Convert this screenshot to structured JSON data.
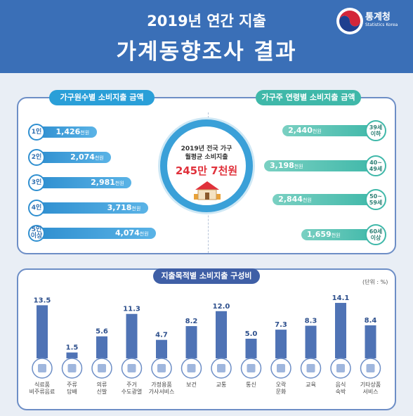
{
  "header": {
    "line1": "2019년 연간 지출",
    "line2": "가계동향조사 결과",
    "logo_name": "통계청",
    "logo_sub": "Statistics Korea"
  },
  "household": {
    "title": "가구원수별 소비지출 금액",
    "unit": "천원",
    "items": [
      {
        "label": "1인",
        "value": "1,426",
        "amount": 1426
      },
      {
        "label": "2인",
        "value": "2,074",
        "amount": 2074
      },
      {
        "label": "3인",
        "value": "2,981",
        "amount": 2981
      },
      {
        "label": "4인",
        "value": "3,718",
        "amount": 3718
      },
      {
        "label": "5인 이상",
        "value": "4,074",
        "amount": 4074
      }
    ]
  },
  "age": {
    "title": "가구주 연령별 소비지출 금액",
    "unit": "천원",
    "items": [
      {
        "label": "39세 이하",
        "value": "2,440",
        "amount": 2440
      },
      {
        "label": "40~ 49세",
        "value": "3,198",
        "amount": 3198
      },
      {
        "label": "50~ 59세",
        "value": "2,844",
        "amount": 2844
      },
      {
        "label": "60세 이상",
        "value": "1,659",
        "amount": 1659
      }
    ]
  },
  "center": {
    "line1": "2019년 전국 가구",
    "line2": "월평균 소비지출",
    "big": "245만 7천원"
  },
  "composition": {
    "title": "지출목적별 소비지출 구성비",
    "unit_note": "(단위 : %)"
  },
  "colors": {
    "header": "#3a6fb7",
    "household_bar": "#2f8fd0",
    "age_bar": "#3fb8a9",
    "comp_bar": "#4f73b5",
    "center_value": "#e0313b"
  },
  "chart_data": {
    "type": "bar",
    "title": "지출목적별 소비지출 구성비",
    "unit": "(단위 : %)",
    "categories": [
      "식료품 비주류음료",
      "주류 담배",
      "의류 신발",
      "주거 수도광열",
      "가정용품 가사서비스",
      "보건",
      "교통",
      "통신",
      "오락 문화",
      "교육",
      "음식 숙박",
      "기타상품 서비스"
    ],
    "values": [
      13.5,
      1.5,
      5.6,
      11.3,
      4.7,
      8.2,
      12.0,
      5.0,
      7.3,
      8.3,
      14.1,
      8.4
    ],
    "value_labels": [
      "13.5",
      "1.5",
      "5.6",
      "11.3",
      "4.7",
      "8.2",
      "12.0",
      "5.0",
      "7.3",
      "8.3",
      "14.1",
      "8.4"
    ],
    "icons": [
      "grocery-icon",
      "liquor-icon",
      "clothing-icon",
      "house-icon",
      "washing-machine-icon",
      "medical-kit-icon",
      "car-icon",
      "phone-icon",
      "popcorn-icon",
      "classroom-icon",
      "dining-icon",
      "calendar-icon"
    ],
    "ylim": [
      0,
      15
    ]
  }
}
